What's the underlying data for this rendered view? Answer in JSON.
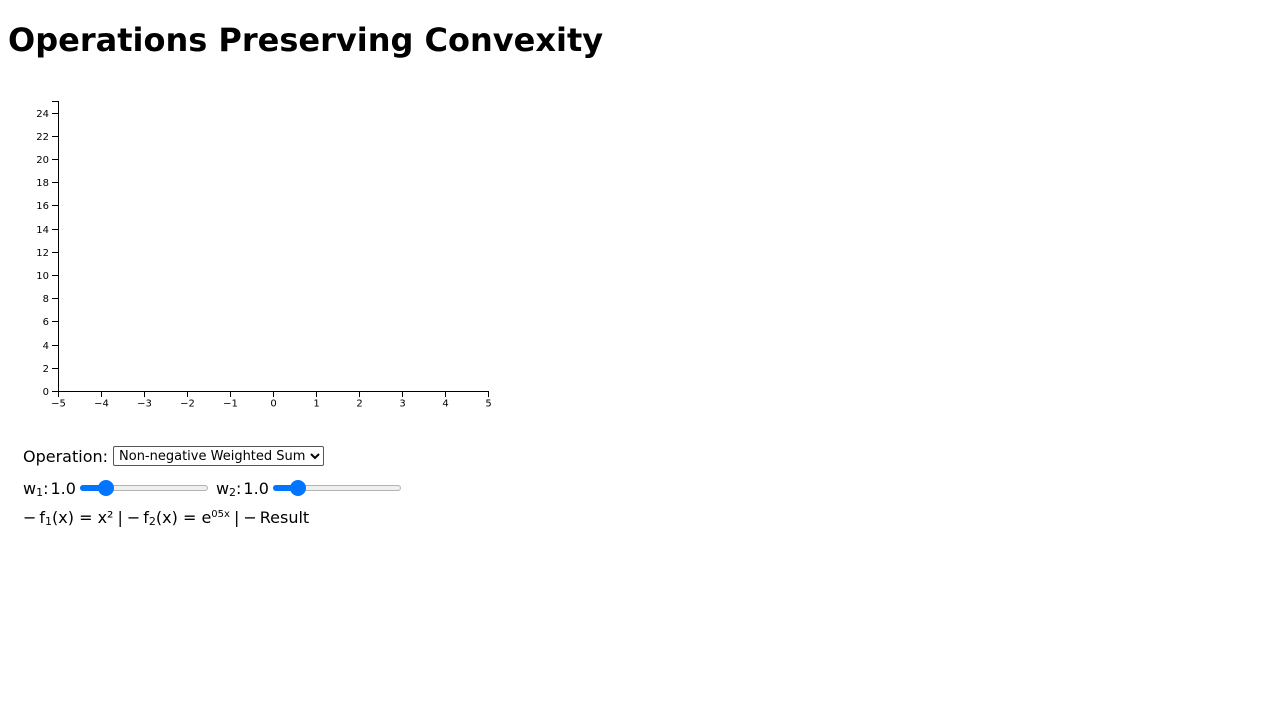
{
  "page": {
    "title": "Operations Preserving Convexity"
  },
  "chart_data": {
    "type": "line",
    "xlim": [
      -5,
      5
    ],
    "ylim": [
      0,
      25
    ],
    "x_ticks": [
      "−5",
      "−4",
      "−3",
      "−2",
      "−1",
      "0",
      "1",
      "2",
      "3",
      "4",
      "5"
    ],
    "y_ticks": [
      "0",
      "2",
      "4",
      "6",
      "8",
      "10",
      "12",
      "14",
      "16",
      "18",
      "20",
      "22",
      "24"
    ],
    "series": [],
    "grid": false,
    "title": "",
    "xlabel": "",
    "ylabel": ""
  },
  "controls": {
    "operation_label": "Operation:",
    "operation_selected": "Non-negative Weighted Sum",
    "w1": {
      "label_main": "w",
      "label_sub": "1",
      "label_colon": ":",
      "value": "1.0",
      "slider_fraction": 0.2
    },
    "w2": {
      "label_main": "w",
      "label_sub": "2",
      "label_colon": ":",
      "value": "1.0",
      "slider_fraction": 0.2
    },
    "accent_color": "#0075ff"
  },
  "legend": {
    "f1": {
      "swatch": "−",
      "pre": "f",
      "sub": "1",
      "text": "(x) = x²"
    },
    "sep1": "|",
    "f2": {
      "swatch": "−",
      "pre": "f",
      "sub": "2",
      "text": "(x) = e",
      "sup": "05x"
    },
    "sep2": "|",
    "result": {
      "swatch": "−",
      "text": "Result"
    }
  }
}
